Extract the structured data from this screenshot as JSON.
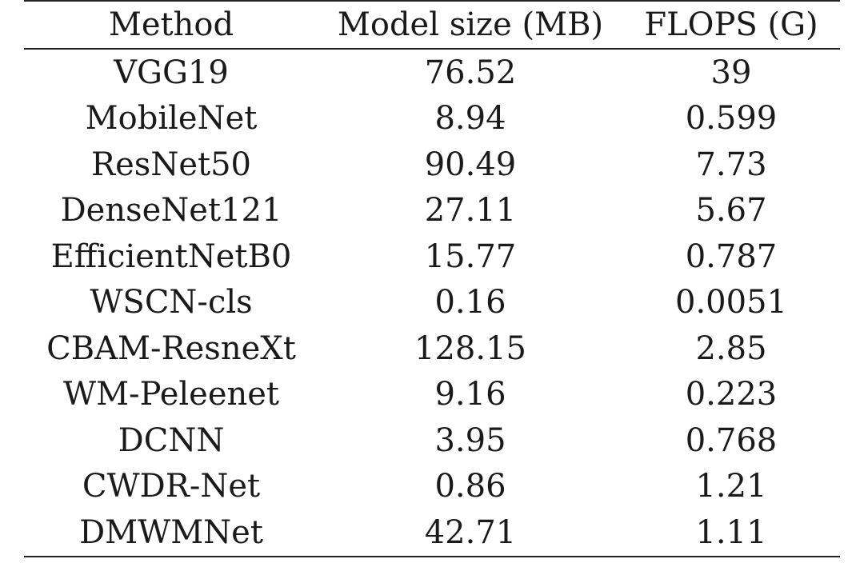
{
  "chart_data": {
    "type": "table",
    "columns": [
      "Method",
      "Model size (MB)",
      "FLOPS (G)"
    ],
    "rows": [
      [
        "VGG19",
        "76.52",
        "39"
      ],
      [
        "MobileNet",
        "8.94",
        "0.599"
      ],
      [
        "ResNet50",
        "90.49",
        "7.73"
      ],
      [
        "DenseNet121",
        "27.11",
        "5.67"
      ],
      [
        "EfficientNetB0",
        "15.77",
        "0.787"
      ],
      [
        "WSCN-cls",
        "0.16",
        "0.0051"
      ],
      [
        "CBAM-ResneXt",
        "128.15",
        "2.85"
      ],
      [
        "WM-Peleenet",
        "9.16",
        "0.223"
      ],
      [
        "DCNN",
        "3.95",
        "0.768"
      ],
      [
        "CWDR-Net",
        "0.86",
        "1.21"
      ],
      [
        "DMWMNet",
        "42.71",
        "1.11"
      ]
    ]
  }
}
